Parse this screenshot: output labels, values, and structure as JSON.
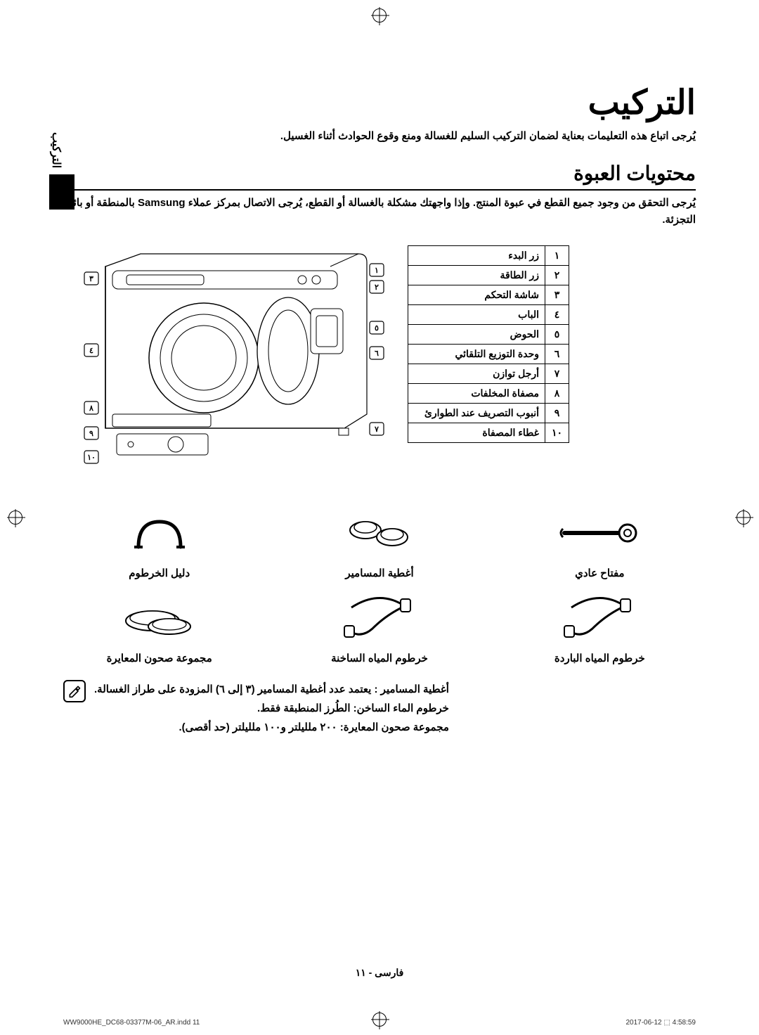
{
  "sideTab": "التركيب",
  "title": "التركيب",
  "intro": "يُرجى اتباع هذه التعليمات بعناية لضمان التركيب السليم للغسالة ومنع وقوع الحوادث أثناء الغسيل.",
  "sectionTitle": "محتويات العبوة",
  "sectionIntro": "يُرجى التحقق من وجود جميع القطع في عبوة المنتج. وإذا واجهتك مشكلة بالغسالة أو القطع، يُرجى الاتصال بمركز عملاء Samsung بالمنطقة أو بائع التجزئة.",
  "parts": [
    {
      "num": "١",
      "label": "زر البدء"
    },
    {
      "num": "٢",
      "label": "زر الطاقة"
    },
    {
      "num": "٣",
      "label": "شاشة التحكم"
    },
    {
      "num": "٤",
      "label": "الباب"
    },
    {
      "num": "٥",
      "label": "الحوض"
    },
    {
      "num": "٦",
      "label": "وحدة التوزيع التلقائي"
    },
    {
      "num": "٧",
      "label": "أرجل توازن"
    },
    {
      "num": "٨",
      "label": "مصفاة المخلفات"
    },
    {
      "num": "٩",
      "label": "أنبوب التصريف عند الطوارئ"
    },
    {
      "num": "١٠",
      "label": "غطاء المصفاة"
    }
  ],
  "accessories": [
    {
      "key": "wrench",
      "label": "مفتاح عادي"
    },
    {
      "key": "boltcaps",
      "label": "أغطية المسامير"
    },
    {
      "key": "hoseguide",
      "label": "دليل الخرطوم"
    },
    {
      "key": "coldhose",
      "label": "خرطوم المياه الباردة"
    },
    {
      "key": "hothose",
      "label": "خرطوم المياه الساخنة"
    },
    {
      "key": "calcups",
      "label": "مجموعة صحون المعايرة"
    }
  ],
  "notes": [
    {
      "bold": "أغطية المسامير",
      "rest": " : يعتمد عدد أغطية المسامير (٣ إلى ٦) المزودة على طراز الغسالة."
    },
    {
      "bold": "خرطوم الماء الساخن",
      "rest": ": الطُرز المنطبقة فقط."
    },
    {
      "bold": "مجموعة صحون المعايرة",
      "rest": ": ٢٠٠ ملليلتر و١٠٠ ملليلتر (حد أقصى)."
    }
  ],
  "pageFooter": "فارسى - ١١",
  "metaLeft": "WW9000HE_DC68-03377M-06_AR.indd   11",
  "metaRight": "2017-06-12   ⬚ 4:58:59",
  "callouts": [
    "١",
    "٢",
    "٣",
    "٤",
    "٥",
    "٦",
    "٧",
    "٨",
    "٩",
    "١٠"
  ]
}
